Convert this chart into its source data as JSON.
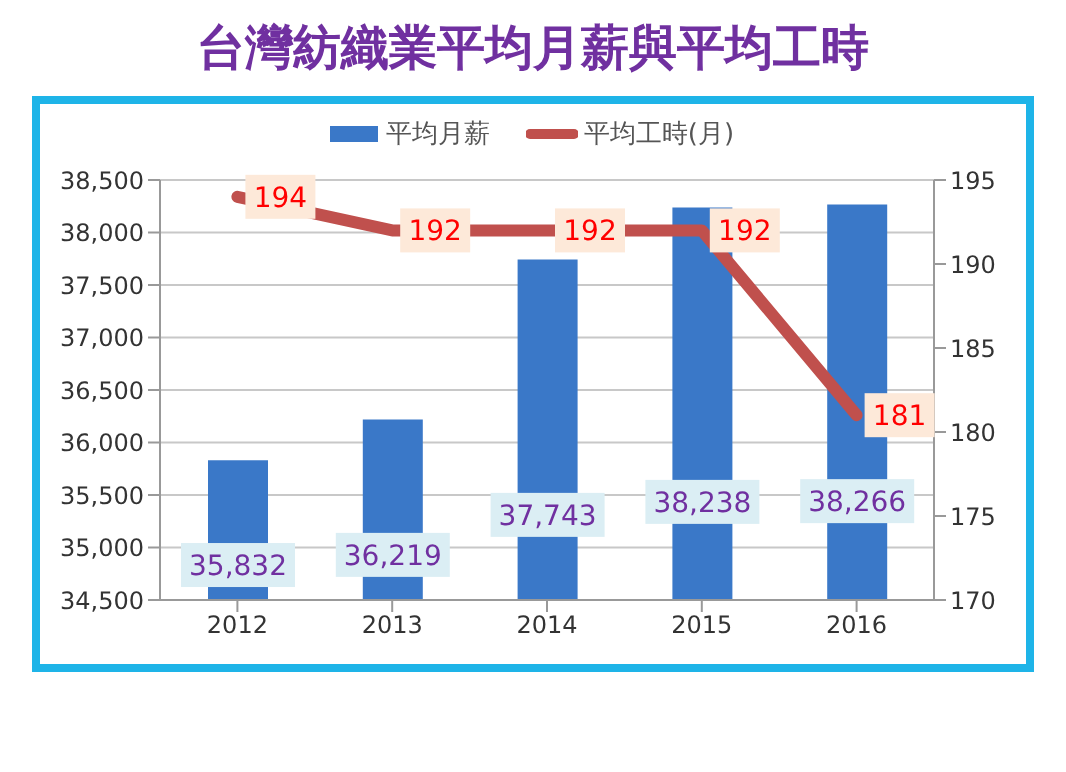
{
  "chart_data": {
    "type": "bar",
    "title": "台灣紡織業平均月薪與平均工時",
    "categories": [
      "2012",
      "2013",
      "2014",
      "2015",
      "2016"
    ],
    "series": [
      {
        "name": "平均月薪",
        "color": "#3a78c8",
        "values": [
          35832,
          36219,
          37743,
          38238,
          38266
        ],
        "value_labels": [
          "35,832",
          "36,219",
          "37,743",
          "38,238",
          "38,266"
        ]
      },
      {
        "name": "平均工時(月)",
        "type": "line",
        "axis": "y2",
        "color": "#c0504d",
        "values": [
          194,
          192,
          192,
          192,
          181
        ],
        "value_labels": [
          "194",
          "192",
          "192",
          "192",
          "181"
        ]
      }
    ],
    "ylim": [
      34500,
      38500
    ],
    "yticks": [
      {
        "value": 34500,
        "label": "34,500"
      },
      {
        "value": 35000,
        "label": "35,000"
      },
      {
        "value": 35500,
        "label": "35,500"
      },
      {
        "value": 36000,
        "label": "36,000"
      },
      {
        "value": 36500,
        "label": "36,500"
      },
      {
        "value": 37000,
        "label": "37,000"
      },
      {
        "value": 37500,
        "label": "37,500"
      },
      {
        "value": 38000,
        "label": "38,000"
      },
      {
        "value": 38500,
        "label": "38,500"
      }
    ],
    "y2lim": [
      170,
      195
    ],
    "y2ticks": [
      170,
      175,
      180,
      185,
      190,
      195
    ],
    "grid": "y",
    "legend": "top",
    "marker": "none"
  }
}
